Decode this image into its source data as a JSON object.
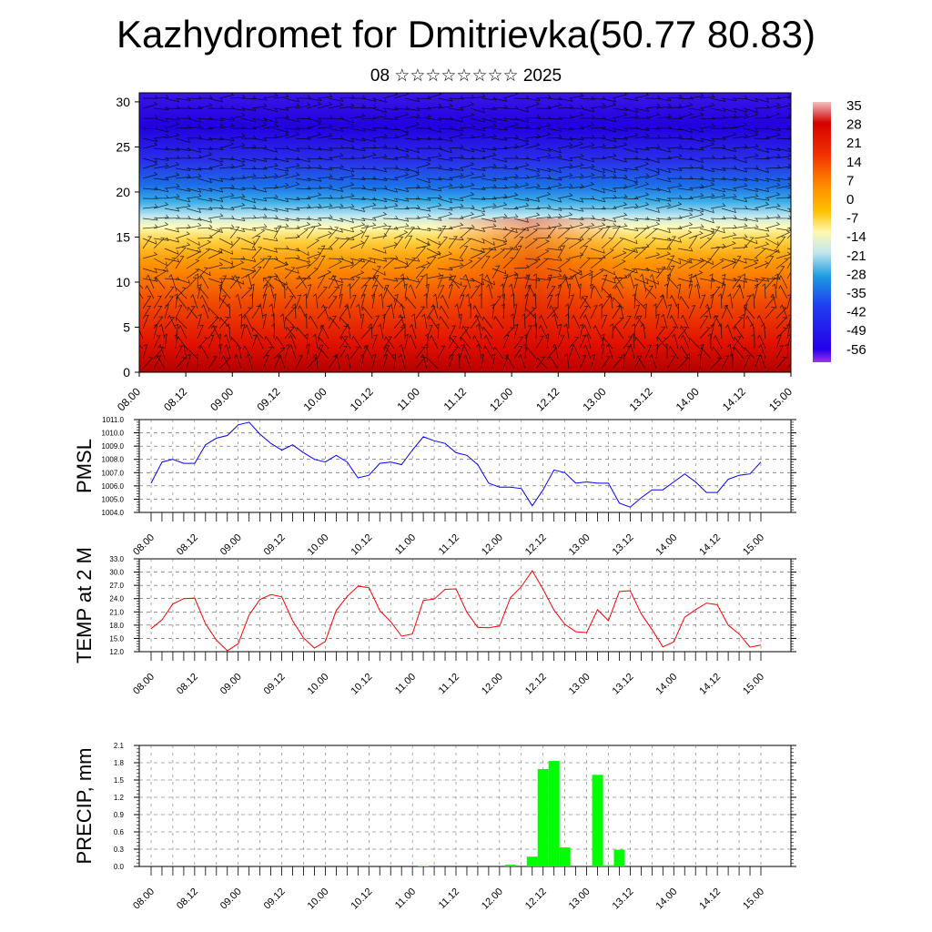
{
  "header": {
    "title": "Kazhydromet for Dmitrievka(50.77 80.83)",
    "subtitle": "08 ☆☆☆☆☆☆☆☆ 2025"
  },
  "time_ticks": [
    "08.00",
    "08.12",
    "09.00",
    "09.12",
    "10.00",
    "10.12",
    "11.00",
    "11.12",
    "12.00",
    "12.12",
    "13.00",
    "13.12",
    "14.00",
    "14.12",
    "15.00"
  ],
  "chart_data": [
    {
      "type": "heatmap",
      "title": "",
      "xlabel": "",
      "ylabel": "",
      "x": [
        "08.00",
        "08.12",
        "09.00",
        "09.12",
        "10.00",
        "10.12",
        "11.00",
        "11.12",
        "12.00",
        "12.12",
        "13.00",
        "13.12",
        "14.00",
        "14.12",
        "15.00"
      ],
      "ylim": [
        0,
        31
      ],
      "yticks": [
        0,
        5,
        10,
        15,
        20,
        25,
        30
      ],
      "colorbar_labels": [
        "35",
        "28",
        "21",
        "14",
        "7",
        "0",
        "-7",
        "-14",
        "-21",
        "-28",
        "-35",
        "-42",
        "-49",
        "-56"
      ],
      "overlay": "wind barbs",
      "colors": {
        "hot": "#d40000",
        "warm": "#ff8a00",
        "neutral": "#fff9b0",
        "cold": "#1e9be0",
        "coldest": "#2400e8",
        "max": "#f0c0c0",
        "min": "#9a35ef"
      }
    },
    {
      "type": "line",
      "ylabel": "PMSL",
      "ylim": [
        1004.0,
        1011.0
      ],
      "yticks": [
        "1004.0",
        "1005.0",
        "1006.0",
        "1007.0",
        "1008.0",
        "1009.0",
        "1010.0",
        "1011.0"
      ],
      "color": "#0000ff",
      "series": [
        {
          "values": [
            1006.2,
            1007.8,
            1008.0,
            1007.7,
            1007.7,
            1009.1,
            1009.6,
            1009.8,
            1010.6,
            1010.8,
            1009.9,
            1009.2,
            1008.7,
            1009.1,
            1008.5,
            1008.0,
            1007.8,
            1008.3,
            1007.8,
            1006.6,
            1006.8,
            1007.7,
            1007.8,
            1007.6,
            1008.7,
            1009.7,
            1009.4,
            1009.2,
            1008.5,
            1008.3,
            1007.6,
            1006.2,
            1005.9,
            1005.9,
            1005.8,
            1004.5,
            1005.7,
            1007.2,
            1007.0,
            1006.2,
            1006.3,
            1006.2,
            1006.2,
            1004.7,
            1004.4,
            1005.1,
            1005.7,
            1005.7,
            1006.3,
            1006.9,
            1006.3,
            1005.5,
            1005.5,
            1006.5,
            1006.8,
            1006.9,
            1007.8
          ]
        }
      ]
    },
    {
      "type": "line",
      "ylabel": "TEMP at 2 M",
      "ylim": [
        12.0,
        33.0
      ],
      "yticks": [
        "12.0",
        "15.0",
        "18.0",
        "21.0",
        "24.0",
        "27.0",
        "30.0",
        "33.0"
      ],
      "color": "#ff0000",
      "series": [
        {
          "values": [
            17.2,
            19.2,
            22.8,
            24.0,
            24.1,
            18.3,
            14.6,
            12.2,
            13.8,
            20.3,
            23.8,
            24.9,
            24.4,
            19.0,
            15.1,
            12.8,
            14.3,
            21.3,
            24.5,
            26.8,
            26.5,
            21.3,
            18.8,
            15.5,
            16.0,
            23.6,
            23.9,
            26.1,
            26.2,
            20.9,
            17.5,
            17.4,
            17.8,
            24.2,
            26.7,
            30.3,
            26.1,
            21.4,
            18.2,
            16.5,
            16.3,
            21.5,
            19.0,
            25.6,
            25.8,
            20.6,
            17.0,
            13.1,
            14.2,
            19.8,
            21.5,
            23.0,
            22.6,
            18.0,
            16.0,
            13.0,
            13.5
          ]
        }
      ]
    },
    {
      "type": "bar",
      "ylabel": "PRECIP, mm",
      "ylim": [
        0.0,
        2.1
      ],
      "yticks": [
        "0.0",
        "0.3",
        "0.6",
        "0.9",
        "1.2",
        "1.5",
        "1.8",
        "2.1"
      ],
      "color": "#00ff00",
      "values": [
        0,
        0,
        0,
        0,
        0,
        0,
        0,
        0,
        0,
        0,
        0,
        0,
        0,
        0,
        0,
        0,
        0,
        0,
        0,
        0,
        0,
        0,
        0,
        0,
        0,
        0.01,
        0,
        0,
        0,
        0,
        0,
        0,
        0,
        0.03,
        0,
        0.17,
        1.69,
        1.83,
        0.33,
        0,
        0,
        1.59,
        0.02,
        0.29,
        0,
        0,
        0,
        0,
        0,
        0,
        0,
        0,
        0,
        0,
        0,
        0,
        0
      ]
    }
  ]
}
